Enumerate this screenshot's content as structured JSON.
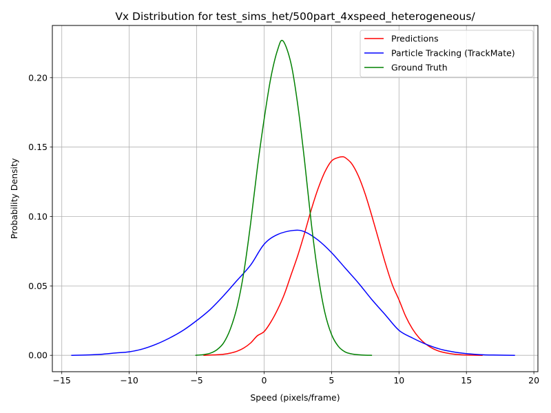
{
  "chart_data": {
    "type": "line",
    "title": "Vx Distribution for test_sims_het/500part_4xspeed_heterogeneous/",
    "xlabel": "Speed (pixels/frame)",
    "ylabel": "Probability Density",
    "xlim": [
      -15.7,
      20.3
    ],
    "ylim": [
      -0.0118,
      0.2376
    ],
    "xticks": [
      -15,
      -10,
      -5,
      0,
      5,
      10,
      15,
      20
    ],
    "xtick_labels": [
      "−15",
      "−10",
      "−5",
      "0",
      "5",
      "10",
      "15",
      "20"
    ],
    "yticks": [
      0.0,
      0.05,
      0.1,
      0.15,
      0.2
    ],
    "ytick_labels": [
      "0.00",
      "0.05",
      "0.10",
      "0.15",
      "0.20"
    ],
    "grid": true,
    "legend_position": "top-right",
    "series": [
      {
        "name": "Predictions",
        "color": "#ff0000",
        "x": [
          -4.5,
          -4.0,
          -3.5,
          -3.0,
          -2.5,
          -2.0,
          -1.5,
          -1.0,
          -0.5,
          0.0,
          0.5,
          1.0,
          1.5,
          2.0,
          2.5,
          3.0,
          3.5,
          4.0,
          4.5,
          5.0,
          5.5,
          5.8,
          6.0,
          6.5,
          7.0,
          7.5,
          8.0,
          8.5,
          9.0,
          9.5,
          10.0,
          10.5,
          11.0,
          11.5,
          12.0,
          12.5,
          13.0,
          13.5,
          14.0,
          14.5,
          15.0,
          15.5,
          16.2
        ],
        "y": [
          0.0,
          0.0002,
          0.0004,
          0.0008,
          0.0016,
          0.003,
          0.0053,
          0.0089,
          0.0141,
          0.0171,
          0.024,
          0.033,
          0.044,
          0.058,
          0.072,
          0.088,
          0.105,
          0.12,
          0.132,
          0.14,
          0.1425,
          0.143,
          0.1425,
          0.138,
          0.129,
          0.116,
          0.1,
          0.083,
          0.066,
          0.051,
          0.04,
          0.028,
          0.019,
          0.0125,
          0.008,
          0.0049,
          0.0029,
          0.0017,
          0.0009,
          0.0005,
          0.0002,
          0.0001,
          0.0
        ]
      },
      {
        "name": "Particle Tracking (TrackMate)",
        "color": "#0000ff",
        "x": [
          -14.3,
          -13.0,
          -12.0,
          -11.0,
          -10.0,
          -9.0,
          -8.0,
          -7.0,
          -6.0,
          -5.0,
          -4.0,
          -3.0,
          -2.0,
          -1.0,
          0.0,
          1.0,
          2.2,
          3.0,
          4.0,
          5.0,
          6.0,
          7.0,
          8.0,
          9.0,
          10.0,
          11.0,
          12.0,
          13.0,
          14.0,
          15.0,
          16.0,
          17.0,
          18.6
        ],
        "y": [
          0.0,
          0.0003,
          0.0008,
          0.0017,
          0.0025,
          0.0046,
          0.008,
          0.0125,
          0.018,
          0.025,
          0.033,
          0.043,
          0.054,
          0.065,
          0.08,
          0.087,
          0.09,
          0.089,
          0.083,
          0.074,
          0.063,
          0.052,
          0.04,
          0.029,
          0.018,
          0.0125,
          0.008,
          0.0046,
          0.0025,
          0.0012,
          0.0005,
          0.0002,
          0.0
        ]
      },
      {
        "name": "Ground Truth",
        "color": "#008000",
        "x": [
          -5.1,
          -4.5,
          -4.0,
          -3.5,
          -3.0,
          -2.5,
          -2.0,
          -1.5,
          -1.0,
          -0.5,
          0.0,
          0.5,
          1.0,
          1.4,
          2.0,
          2.5,
          3.0,
          3.5,
          4.0,
          4.5,
          5.0,
          5.5,
          6.0,
          6.5,
          7.0,
          7.5,
          8.0
        ],
        "y": [
          0.0,
          0.0005,
          0.0015,
          0.004,
          0.009,
          0.019,
          0.035,
          0.06,
          0.095,
          0.135,
          0.17,
          0.2,
          0.22,
          0.2265,
          0.21,
          0.18,
          0.14,
          0.095,
          0.058,
          0.031,
          0.015,
          0.0065,
          0.0025,
          0.001,
          0.0004,
          0.0001,
          0.0
        ]
      }
    ]
  }
}
